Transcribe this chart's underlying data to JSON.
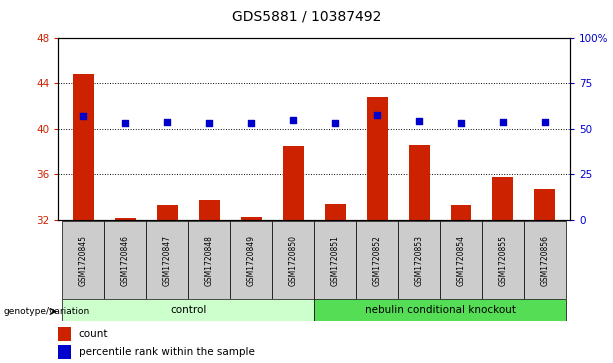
{
  "title": "GDS5881 / 10387492",
  "samples": [
    "GSM1720845",
    "GSM1720846",
    "GSM1720847",
    "GSM1720848",
    "GSM1720849",
    "GSM1720850",
    "GSM1720851",
    "GSM1720852",
    "GSM1720853",
    "GSM1720854",
    "GSM1720855",
    "GSM1720856"
  ],
  "counts": [
    44.8,
    32.1,
    33.3,
    33.7,
    32.2,
    38.5,
    33.4,
    42.8,
    38.6,
    33.3,
    35.8,
    34.7
  ],
  "percentiles": [
    57.0,
    53.0,
    54.0,
    53.5,
    53.0,
    55.0,
    53.5,
    57.5,
    54.5,
    53.5,
    54.0,
    54.0
  ],
  "ylim_left": [
    32,
    48
  ],
  "ylim_right": [
    0,
    100
  ],
  "yticks_left": [
    32,
    36,
    40,
    44,
    48
  ],
  "yticks_right": [
    0,
    25,
    50,
    75,
    100
  ],
  "ytick_labels_right": [
    "0",
    "25",
    "50",
    "75",
    "100%"
  ],
  "bar_color": "#cc2200",
  "dot_color": "#0000cc",
  "left_tick_color": "#cc2200",
  "right_tick_color": "#0000cc",
  "control_label": "control",
  "knockout_label": "nebulin conditional knockout",
  "genotype_label": "genotype/variation",
  "count_legend": "count",
  "percentile_legend": "percentile rank within the sample",
  "control_bg": "#ccffcc",
  "knockout_bg": "#55dd55",
  "sample_bg": "#cccccc",
  "figsize": [
    6.13,
    3.63
  ],
  "dpi": 100
}
